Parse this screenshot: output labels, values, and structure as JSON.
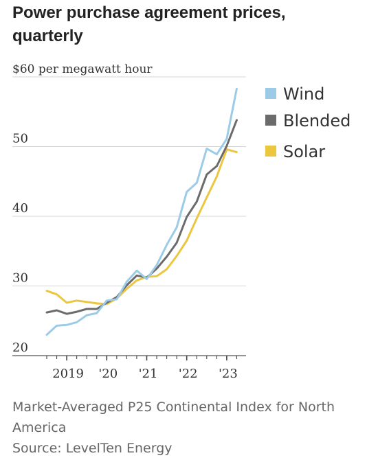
{
  "title": "Power purchase agreement prices, quarterly",
  "footer": {
    "note": "Market-Averaged P25 Continental Index for North America",
    "source": "Source: LevelTen Energy"
  },
  "chart_data": {
    "type": "line",
    "title": "Power purchase agreement prices, quarterly",
    "ylabel": "$60 per megawatt hour",
    "ylim": [
      20,
      60
    ],
    "y_ticks": [
      20,
      30,
      40,
      50,
      60
    ],
    "y_tick_labels": [
      "20",
      "30",
      "40",
      "50",
      "$60 per megawatt hour"
    ],
    "grid": true,
    "legend_position": "top-right",
    "x_tick_labels": [
      "2019",
      "'20",
      "'21",
      "'22",
      "'23"
    ],
    "x": [
      "2018 Q3",
      "2018 Q4",
      "2019 Q1",
      "2019 Q2",
      "2019 Q3",
      "2019 Q4",
      "2020 Q1",
      "2020 Q2",
      "2020 Q3",
      "2020 Q4",
      "2021 Q1",
      "2021 Q2",
      "2021 Q3",
      "2021 Q4",
      "2022 Q1",
      "2022 Q2",
      "2022 Q3",
      "2022 Q4",
      "2023 Q1",
      "2023 Q2"
    ],
    "series": [
      {
        "name": "Wind",
        "color": "#9ccbe8",
        "values": [
          23.0,
          24.3,
          24.4,
          24.8,
          25.8,
          26.1,
          27.9,
          28.1,
          30.6,
          32.2,
          31.0,
          33.0,
          35.9,
          38.4,
          43.5,
          44.8,
          49.7,
          48.9,
          51.1,
          58.3
        ]
      },
      {
        "name": "Blended",
        "color": "#6b6b6b",
        "values": [
          26.2,
          26.5,
          26.0,
          26.3,
          26.7,
          26.7,
          27.6,
          28.4,
          30.1,
          31.5,
          31.2,
          32.5,
          34.2,
          36.2,
          39.9,
          42.1,
          46.0,
          47.2,
          50.1,
          53.8
        ]
      },
      {
        "name": "Solar",
        "color": "#edc640",
        "values": [
          29.3,
          28.8,
          27.6,
          27.9,
          27.7,
          27.5,
          27.4,
          28.2,
          29.6,
          30.8,
          31.3,
          31.4,
          32.4,
          34.3,
          36.5,
          39.7,
          42.7,
          45.7,
          49.6,
          49.2
        ]
      }
    ]
  }
}
